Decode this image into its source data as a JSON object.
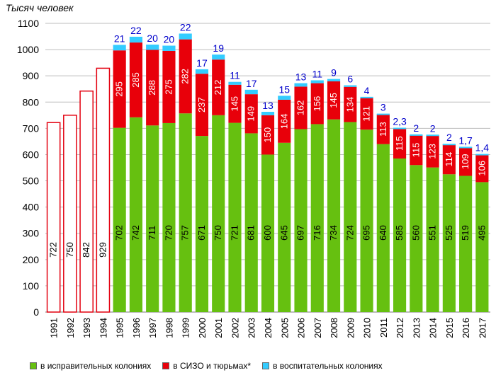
{
  "chart_data": {
    "type": "bar",
    "ylabel": "Тысяч  человек",
    "ylim": [
      0,
      1100
    ],
    "yticks": [
      "0",
      "100",
      "200",
      "300",
      "400",
      "500",
      "600",
      "700",
      "800",
      "900",
      "1000",
      "1100"
    ],
    "categories": [
      "1991",
      "1992",
      "1993",
      "1994",
      "1995",
      "1996",
      "1997",
      "1998",
      "1999",
      "2000",
      "2001",
      "2002",
      "2003",
      "2004",
      "2005",
      "2006",
      "2007",
      "2008",
      "2009",
      "2010",
      "2011",
      "2012",
      "2013",
      "2014",
      "2015",
      "2016",
      "2017"
    ],
    "totals_outline": [
      722,
      750,
      842,
      929
    ],
    "total_labels": [
      "722",
      "750",
      "842",
      "929"
    ],
    "series": [
      {
        "name": "в исправительных колониях",
        "color": "#66c010",
        "values": [
          null,
          null,
          null,
          null,
          702,
          742,
          711,
          720,
          757,
          671,
          750,
          721,
          681,
          600,
          645,
          697,
          716,
          734,
          724,
          695,
          640,
          585,
          560,
          551,
          525,
          519,
          495
        ],
        "labels": [
          "",
          "",
          "",
          "",
          "702",
          "742",
          "711",
          "720",
          "757",
          "671",
          "750",
          "721",
          "681",
          "600",
          "645",
          "697",
          "716",
          "734",
          "724",
          "695",
          "640",
          "585",
          "560",
          "551",
          "525",
          "519",
          "495"
        ]
      },
      {
        "name": "в СИЗО и тюрьмах*",
        "color": "#e8000a",
        "values": [
          null,
          null,
          null,
          null,
          295,
          285,
          288,
          275,
          282,
          237,
          212,
          145,
          149,
          150,
          164,
          162,
          156,
          145,
          134,
          121,
          113,
          115,
          115,
          123,
          114,
          109,
          106
        ],
        "labels": [
          "",
          "",
          "",
          "",
          "295",
          "285",
          "288",
          "275",
          "282",
          "237",
          "212",
          "145",
          "149",
          "150",
          "164",
          "162",
          "156",
          "145",
          "134",
          "121",
          "113",
          "115",
          "115",
          "123",
          "114",
          "109",
          "106"
        ]
      },
      {
        "name": "в воспитательных колониях",
        "color": "#33ccff",
        "values": [
          null,
          null,
          null,
          null,
          21,
          22,
          20,
          20,
          22,
          17,
          19,
          11,
          17,
          13,
          15,
          13,
          11,
          9,
          6,
          4,
          3,
          2.3,
          2,
          2,
          2,
          1.7,
          1.4
        ],
        "labels": [
          "",
          "",
          "",
          "",
          "21",
          "22",
          "20",
          "20",
          "22",
          "17",
          "19",
          "11",
          "17",
          "13",
          "15",
          "13",
          "11",
          "9",
          "6",
          "4",
          "3",
          "2,3",
          "2",
          "2",
          "2",
          "1,7",
          "1,4"
        ]
      }
    ]
  },
  "legend": {
    "items": [
      {
        "label": "в исправительных колониях",
        "color": "#66c010"
      },
      {
        "label": "в СИЗО и тюрьмах*",
        "color": "#e8000a"
      },
      {
        "label": "в воспитательных колониях",
        "color": "#33ccff"
      }
    ]
  }
}
